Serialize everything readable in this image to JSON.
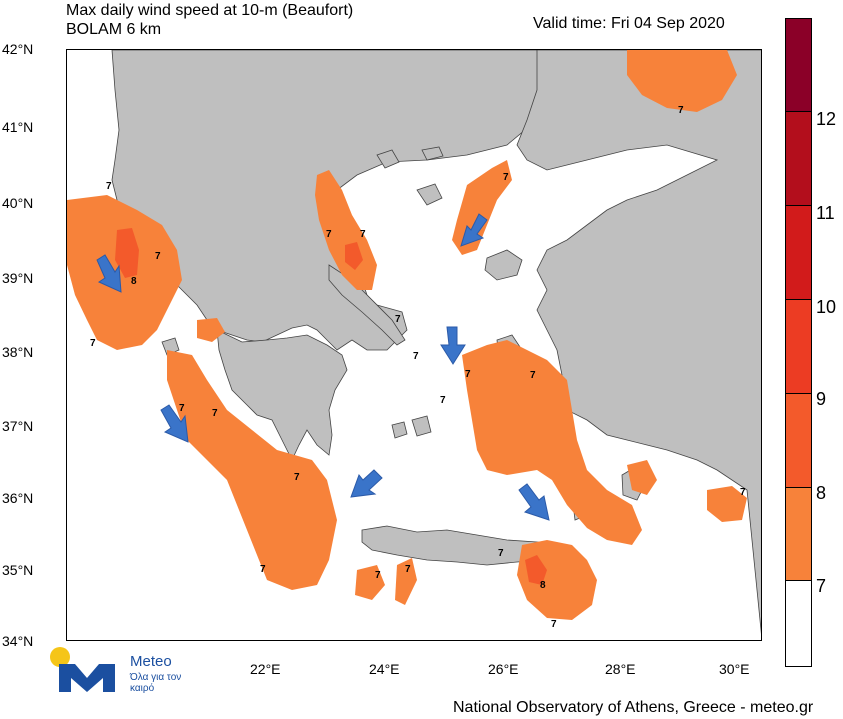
{
  "header": {
    "title_line1": "Max daily wind speed at 10-m (Beaufort)",
    "title_line2": "BOLAM 6 km",
    "valid_time": "Valid time: Fri 04 Sep 2020"
  },
  "axes": {
    "lat_labels": [
      "42°N",
      "41°N",
      "40°N",
      "39°N",
      "38°N",
      "37°N",
      "36°N",
      "35°N",
      "34°N"
    ],
    "lon_labels": [
      "22°E",
      "24°E",
      "26°E",
      "28°E",
      "30°E"
    ]
  },
  "colorbar": {
    "labels": [
      "12",
      "11",
      "10",
      "9",
      "8",
      "7"
    ],
    "colors": [
      "#8b0028",
      "#b30e1c",
      "#d21b1b",
      "#ec3c23",
      "#f35a2b",
      "#f7823a",
      "#ffffff"
    ]
  },
  "map_labels": [
    "7",
    "7",
    "8",
    "7",
    "7",
    "7",
    "7",
    "7",
    "7",
    "7",
    "7",
    "7",
    "7",
    "7",
    "7",
    "7",
    "7",
    "7",
    "7",
    "7",
    "8",
    "7",
    "7"
  ],
  "footer": {
    "credit": "National Observatory of Athens, Greece - meteo.gr"
  },
  "logo": {
    "name": "Meteo",
    "tagline": "Όλα για τον καιρό",
    "colors": {
      "sun": "#f5c518",
      "mark": "#1b4fa0"
    }
  },
  "palette": {
    "land": "#bfbfbf",
    "sea": "#ffffff",
    "bf7": "#f7823a",
    "bf8": "#f35a2b",
    "arrow": "#3a74c9"
  }
}
